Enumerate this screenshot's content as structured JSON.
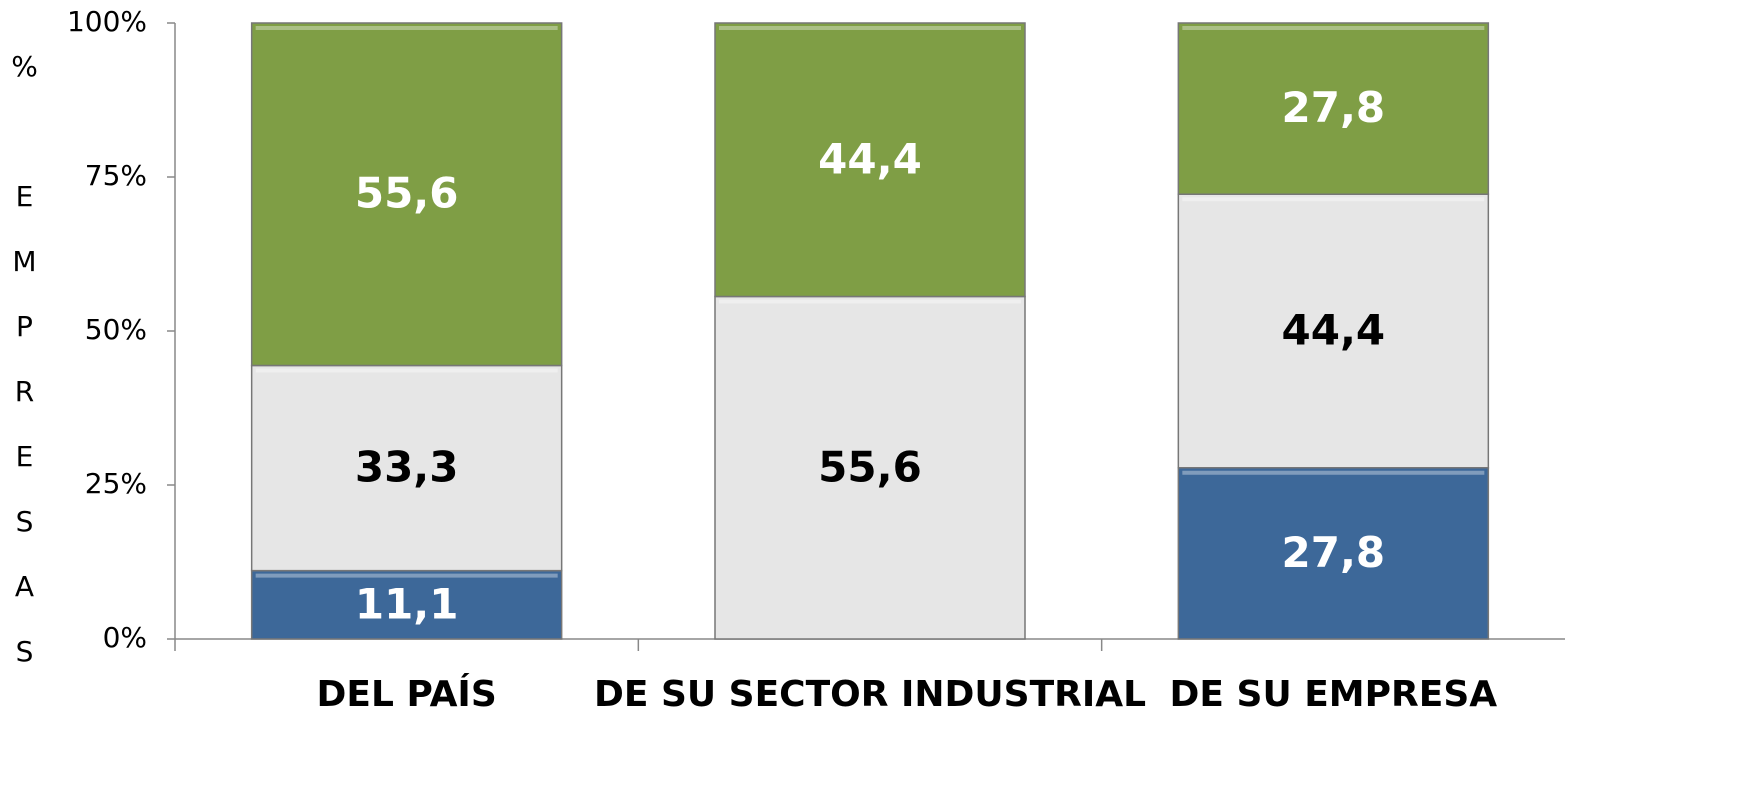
{
  "chart_data": {
    "type": "stacked_bar",
    "y_label": "% EMPRESAS",
    "categories": [
      "DEL PAÍS",
      "DE SU SECTOR INDUSTRIAL",
      "DE SU EMPRESA"
    ],
    "series": [
      {
        "color": "#3d6899",
        "label_color": "#ffffff",
        "values": [
          11.1,
          0,
          27.8
        ],
        "value_labels": [
          "11,1",
          null,
          "27,8"
        ]
      },
      {
        "color": "#e6e6e6",
        "label_color": "#000000",
        "values": [
          33.3,
          55.6,
          44.4
        ],
        "value_labels": [
          "33,3",
          "55,6",
          "44,4"
        ]
      },
      {
        "color": "#7f9e45",
        "label_color": "#ffffff",
        "values": [
          55.6,
          44.4,
          27.8
        ],
        "value_labels": [
          "55,6",
          "44,4",
          "27,8"
        ]
      }
    ],
    "ylim": [
      0,
      100
    ],
    "yticks": [
      {
        "value": 0,
        "label": "0%"
      },
      {
        "value": 25,
        "label": "25%"
      },
      {
        "value": 50,
        "label": "50%"
      },
      {
        "value": 75,
        "label": "75%"
      },
      {
        "value": 100,
        "label": "100%"
      }
    ]
  }
}
